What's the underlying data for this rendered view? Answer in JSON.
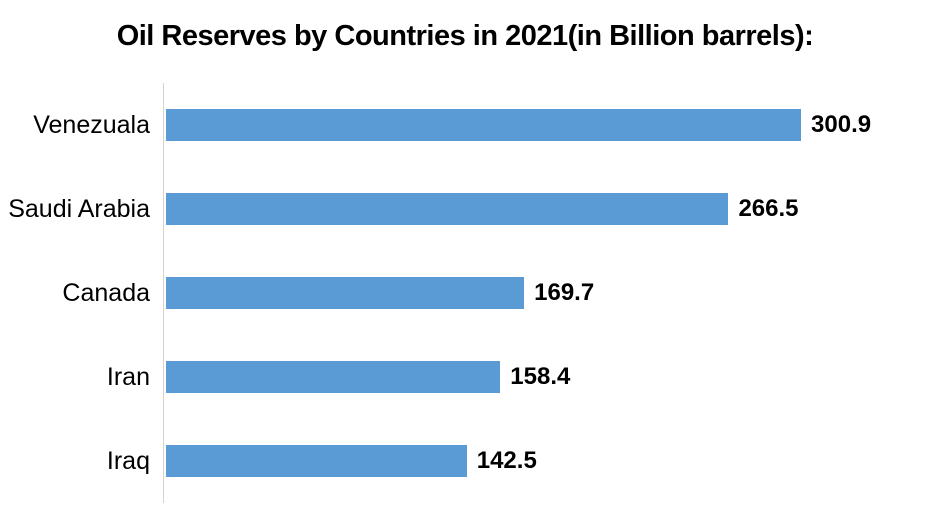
{
  "chart_data": {
    "type": "bar",
    "orientation": "horizontal",
    "title": "Oil Reserves by Countries in 2021(in Billion barrels):",
    "categories": [
      "Venezuala",
      "Saudi Arabia",
      "Canada",
      "Iran",
      "Iraq"
    ],
    "values": [
      300.9,
      266.5,
      169.7,
      158.4,
      142.5
    ],
    "value_labels": [
      "300.9",
      "266.5",
      "169.7",
      "158.4",
      "142.5"
    ],
    "xlabel": "",
    "ylabel": "",
    "xlim": [
      0,
      362
    ],
    "grid": false,
    "legend_position": "none",
    "data_labels": "outside-end",
    "bar_color": "#5B9BD5",
    "axis_line_color": "#D2D2D2",
    "text_color": "#000000"
  }
}
